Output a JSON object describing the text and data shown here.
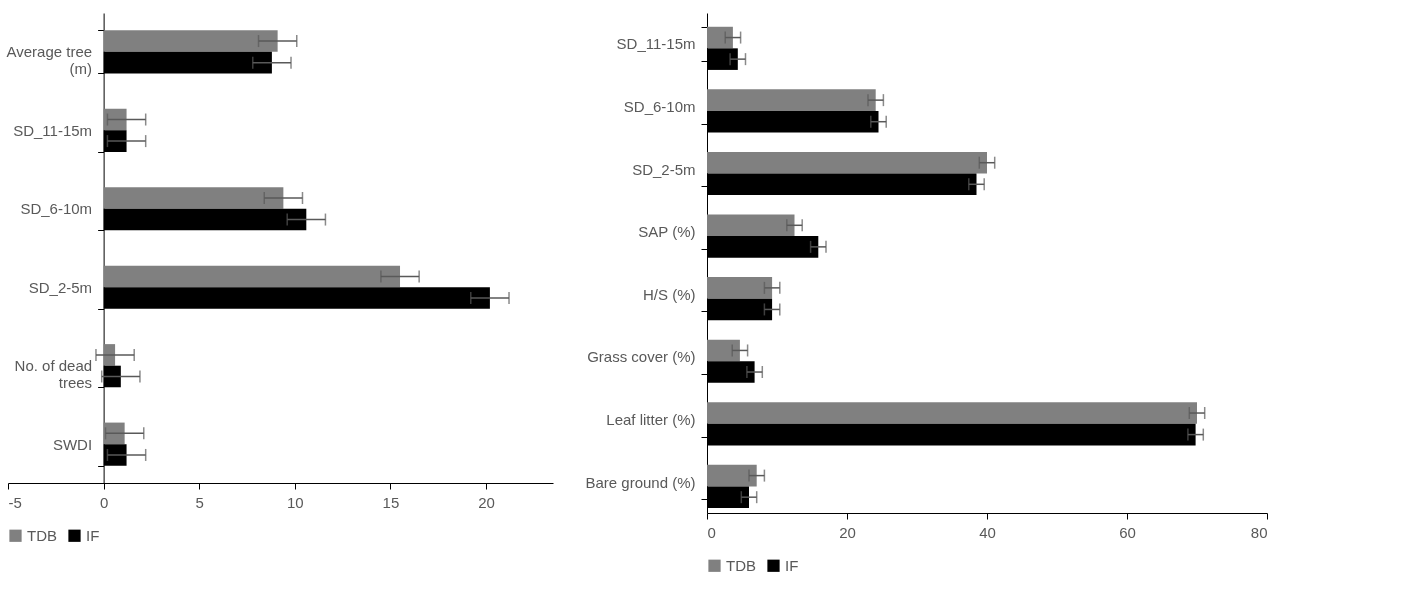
{
  "chart_data": [
    {
      "type": "bar",
      "orientation": "horizontal",
      "categories": [
        "Average tree (m)",
        "SD_11-15m",
        "SD_6-10m",
        "SD_2-5m",
        "No. of dead trees",
        "SWDI"
      ],
      "series": [
        {
          "name": "TDB",
          "color": "#808080",
          "values": [
            9.1,
            1.2,
            9.4,
            15.5,
            0.6,
            1.1
          ],
          "errors": [
            1.0,
            1.0,
            1.0,
            1.0,
            1.0,
            1.0
          ]
        },
        {
          "name": "IF",
          "color": "#000000",
          "values": [
            8.8,
            1.2,
            10.6,
            20.2,
            0.9,
            1.2
          ],
          "errors": [
            1.0,
            1.0,
            1.0,
            1.0,
            1.0,
            1.0
          ]
        }
      ],
      "xlim": [
        -5,
        23.5
      ],
      "xticks": [
        -5,
        0,
        5,
        10,
        15,
        20
      ],
      "legend": "bottom",
      "grid": false
    },
    {
      "type": "bar",
      "orientation": "horizontal",
      "categories": [
        "SD_11-15m",
        "SD_6-10m",
        "SD_2-5m",
        "SAP (%)",
        "H/S (%)",
        "Grass cover (%)",
        "Leaf litter (%)",
        "Bare ground (%)"
      ],
      "series": [
        {
          "name": "TDB",
          "color": "#808080",
          "values": [
            3.7,
            24.1,
            40.0,
            12.5,
            9.3,
            4.7,
            70.0,
            7.1
          ],
          "errors": [
            1.1,
            1.1,
            1.1,
            1.1,
            1.1,
            1.1,
            1.1,
            1.1
          ]
        },
        {
          "name": "IF",
          "color": "#000000",
          "values": [
            4.4,
            24.5,
            38.5,
            15.9,
            9.3,
            6.8,
            69.8,
            6.0
          ],
          "errors": [
            1.1,
            1.1,
            1.1,
            1.1,
            1.1,
            1.1,
            1.1,
            1.1
          ]
        }
      ],
      "xlim": [
        0,
        80
      ],
      "xticks": [
        0,
        20,
        40,
        60,
        80
      ],
      "legend": "bottom",
      "grid": false
    }
  ]
}
